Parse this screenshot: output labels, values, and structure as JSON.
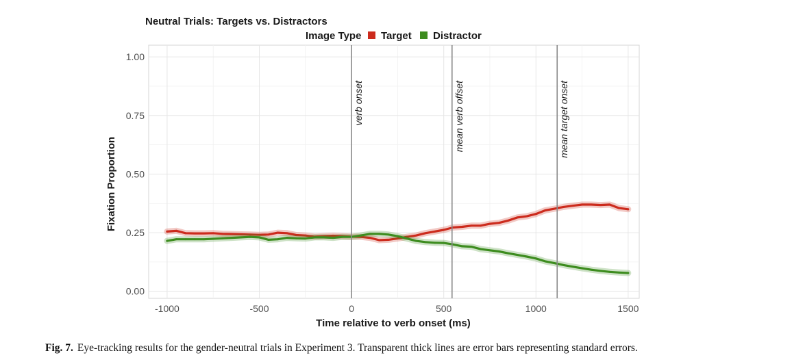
{
  "caption": {
    "label": "Fig. 7.",
    "text": "Eye-tracking results for the gender-neutral trials in Experiment 3. Transparent thick lines are error bars representing standard errors."
  },
  "chart_data": {
    "type": "line",
    "title": "Neutral Trials: Targets vs. Distractors",
    "xlabel": "Time relative to verb onset (ms)",
    "ylabel": "Fixation Proportion",
    "xlim": [
      -1100,
      1560
    ],
    "ylim": [
      -0.03,
      1.05
    ],
    "xticks": [
      -1000,
      -500,
      0,
      500,
      1000,
      1500
    ],
    "xtick_labels": [
      "-1000",
      "-500",
      "0",
      "500",
      "1000",
      "1500"
    ],
    "yticks": [
      0.0,
      0.25,
      0.5,
      0.75,
      1.0
    ],
    "ytick_labels": [
      "0.00",
      "0.25",
      "0.50",
      "0.75",
      "1.00"
    ],
    "grid": true,
    "legend": {
      "title": "Image Type",
      "position": "top"
    },
    "vlines": [
      {
        "x": 0,
        "label": "verb onset"
      },
      {
        "x": 545,
        "label": "mean verb offset"
      },
      {
        "x": 1115,
        "label": "mean target onset"
      }
    ],
    "x": [
      -1000,
      -950,
      -900,
      -850,
      -800,
      -750,
      -700,
      -650,
      -600,
      -550,
      -500,
      -450,
      -400,
      -350,
      -300,
      -250,
      -200,
      -150,
      -100,
      -50,
      0,
      50,
      100,
      150,
      200,
      250,
      300,
      350,
      400,
      450,
      500,
      550,
      600,
      650,
      700,
      750,
      800,
      850,
      900,
      950,
      1000,
      1050,
      1100,
      1150,
      1200,
      1250,
      1300,
      1350,
      1400,
      1450,
      1500
    ],
    "series": [
      {
        "name": "Target",
        "color": "#cc2b1d",
        "values": [
          0.255,
          0.258,
          0.248,
          0.247,
          0.247,
          0.248,
          0.245,
          0.244,
          0.243,
          0.242,
          0.241,
          0.242,
          0.25,
          0.248,
          0.24,
          0.238,
          0.233,
          0.235,
          0.237,
          0.235,
          0.233,
          0.232,
          0.228,
          0.218,
          0.22,
          0.225,
          0.232,
          0.238,
          0.248,
          0.255,
          0.262,
          0.272,
          0.275,
          0.28,
          0.28,
          0.288,
          0.292,
          0.302,
          0.315,
          0.32,
          0.33,
          0.345,
          0.352,
          0.36,
          0.365,
          0.37,
          0.37,
          0.368,
          0.37,
          0.355,
          0.35
        ]
      },
      {
        "name": "Distractor",
        "color": "#3d8c1f",
        "values": [
          0.215,
          0.222,
          0.222,
          0.222,
          0.222,
          0.224,
          0.226,
          0.228,
          0.23,
          0.232,
          0.23,
          0.22,
          0.222,
          0.228,
          0.226,
          0.225,
          0.23,
          0.23,
          0.228,
          0.232,
          0.232,
          0.238,
          0.245,
          0.245,
          0.242,
          0.235,
          0.225,
          0.215,
          0.21,
          0.207,
          0.206,
          0.2,
          0.192,
          0.19,
          0.18,
          0.175,
          0.17,
          0.162,
          0.155,
          0.148,
          0.14,
          0.128,
          0.12,
          0.112,
          0.105,
          0.098,
          0.092,
          0.087,
          0.083,
          0.08,
          0.078
        ]
      }
    ]
  }
}
